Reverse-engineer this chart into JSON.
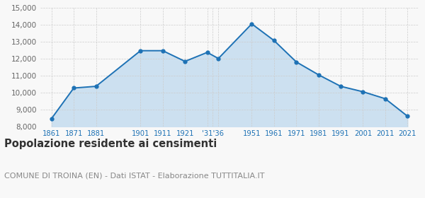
{
  "years": [
    1861,
    1871,
    1881,
    1901,
    1911,
    1921,
    1931,
    1936,
    1951,
    1961,
    1971,
    1981,
    1991,
    2001,
    2011,
    2021
  ],
  "population": [
    8480,
    10280,
    10380,
    12480,
    12480,
    11850,
    12380,
    12020,
    14060,
    13080,
    11820,
    11060,
    10380,
    10060,
    9650,
    8620
  ],
  "line_color": "#1e72b5",
  "fill_color": "#cce0f0",
  "marker_color": "#1e72b5",
  "bg_color": "#f8f8f8",
  "grid_color": "#cccccc",
  "ylim": [
    8000,
    15000
  ],
  "yticks": [
    8000,
    9000,
    10000,
    11000,
    12000,
    13000,
    14000,
    15000
  ],
  "title": "Popolazione residente ai censimenti",
  "subtitle": "COMUNE DI TROINA (EN) - Dati ISTAT - Elaborazione TUTTITALIA.IT",
  "title_fontsize": 10.5,
  "subtitle_fontsize": 8.0
}
